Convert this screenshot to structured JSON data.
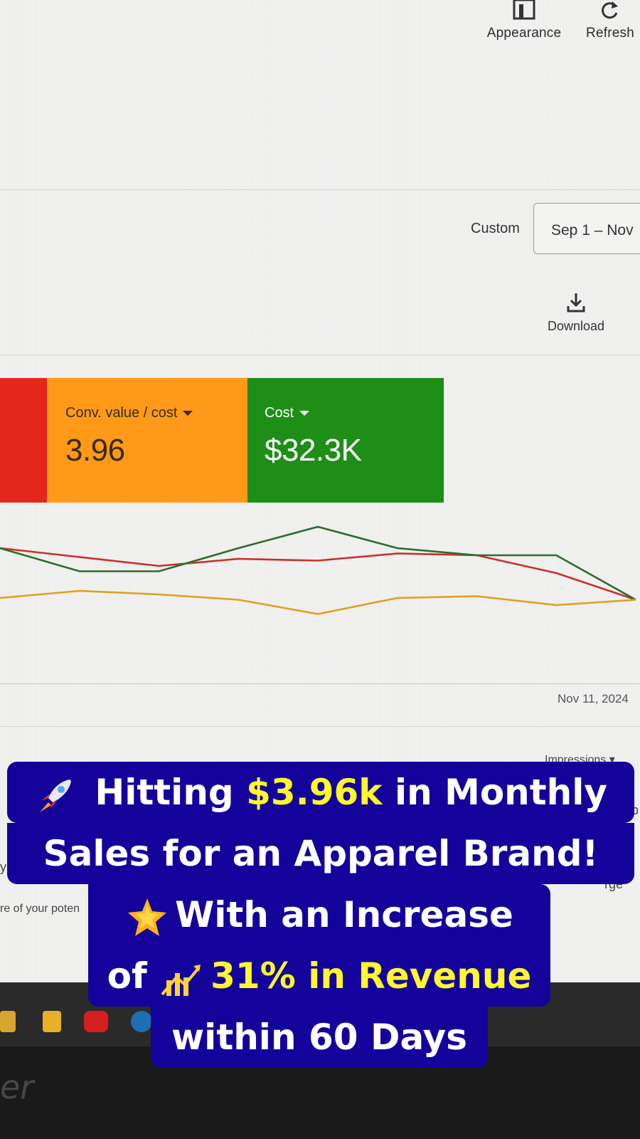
{
  "toolbar": {
    "appearance_label": "Appearance",
    "refresh_label": "Refresh",
    "download_label": "Download"
  },
  "date": {
    "custom_label": "Custom",
    "range_value": "Sep 1 – Nov"
  },
  "metrics": [
    {
      "label": "Conv. value / cost",
      "value": "3.96",
      "color": "#ff9a19"
    },
    {
      "label": "Cost",
      "value": "$32.3K",
      "color": "#1e8e17"
    }
  ],
  "chart_data": {
    "type": "line",
    "x_end_label": "Nov 11, 2024",
    "series": [
      {
        "color": "#c9302c",
        "values": [
          0.84,
          0.79,
          0.74,
          0.78,
          0.77,
          0.81,
          0.8,
          0.7,
          0.55
        ]
      },
      {
        "color": "#2f6b2f",
        "values": [
          0.84,
          0.71,
          0.71,
          0.84,
          0.96,
          0.84,
          0.8,
          0.8,
          0.55
        ]
      },
      {
        "color": "#e0a020",
        "values": [
          0.56,
          0.6,
          0.58,
          0.55,
          0.47,
          0.56,
          0.57,
          0.52,
          0.55
        ]
      }
    ],
    "ylim": [
      0,
      1
    ]
  },
  "footer": {
    "impressions_label": "Impressions ▾",
    "left_fragment_y": "y",
    "left_fragment_potential": "re of your poten",
    "right_fragment_b": "b",
    "right_fragment_rge": "rge"
  },
  "brand": "er",
  "caption": {
    "line1_pre": " Hitting ",
    "line1_hl": "$3.96k",
    "line1_post": " in Monthly",
    "line2": "Sales for an Apparel Brand!",
    "line3": "With an Increase",
    "line4_pre": "of ",
    "line4_hl": "31% in Revenue",
    "line5": "within 60 Days"
  }
}
